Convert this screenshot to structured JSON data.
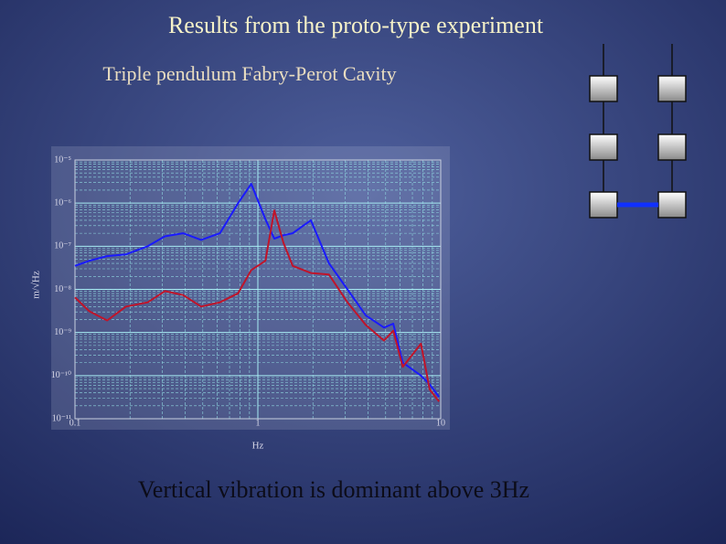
{
  "chart_data": {
    "type": "line",
    "title": "Results from the proto-type experiment",
    "subtitle": "Triple pendulum Fabry-Perot Cavity",
    "annotation": "Vertical vibration is dominant above 3Hz",
    "xlabel": "Hz",
    "ylabel": "m/√Hz",
    "xscale": "log",
    "yscale": "log",
    "grid": true,
    "x": [
      0.1,
      0.12,
      0.15,
      0.19,
      0.25,
      0.31,
      0.39,
      0.49,
      0.62,
      0.78,
      0.92,
      1.1,
      1.23,
      1.38,
      1.55,
      1.95,
      2.45,
      3.09,
      3.89,
      4.9,
      5.5,
      6.2,
      7.8,
      8.7,
      9.8
    ],
    "series": [
      {
        "color": "#1a1aff",
        "values": [
          3.5e-08,
          4.6e-08,
          5.9e-08,
          6.5e-08,
          1e-07,
          1.7e-07,
          2e-07,
          1.4e-07,
          2e-07,
          1e-06,
          2.8e-06,
          4.2e-07,
          1.5e-07,
          1.8e-07,
          2e-07,
          4e-07,
          4e-08,
          1e-08,
          2.5e-09,
          1.3e-09,
          1.6e-09,
          2e-10,
          1e-10,
          6.3e-11,
          3.2e-11
        ]
      },
      {
        "color": "#c0142a",
        "values": [
          6.5e-09,
          3.1e-09,
          1.9e-09,
          4e-09,
          5e-09,
          9.1e-09,
          7.4e-09,
          4e-09,
          5e-09,
          8.1e-09,
          2.8e-08,
          4.6e-08,
          6.8e-07,
          1.2e-07,
          3.5e-08,
          2.4e-08,
          2.2e-08,
          5e-09,
          1.5e-09,
          6.5e-10,
          1.1e-09,
          1.6e-10,
          5.5e-10,
          4.8e-11,
          2.5e-11
        ]
      }
    ],
    "xlim": [
      0.1,
      10
    ],
    "xticks": [
      0.1,
      1,
      10
    ],
    "ylim": [
      1e-11,
      1e-05
    ],
    "yticks": [
      {
        "value": 1e-05,
        "label": "10⁻⁵"
      },
      {
        "value": 1e-06,
        "label": "10⁻⁶"
      },
      {
        "value": 1e-07,
        "label": "10⁻⁷"
      },
      {
        "value": 1e-08,
        "label": "10⁻⁸"
      },
      {
        "value": 1e-09,
        "label": "10⁻⁹"
      },
      {
        "value": 1e-10,
        "label": "10⁻¹⁰"
      },
      {
        "value": 1e-11,
        "label": "10⁻¹¹"
      }
    ]
  }
}
